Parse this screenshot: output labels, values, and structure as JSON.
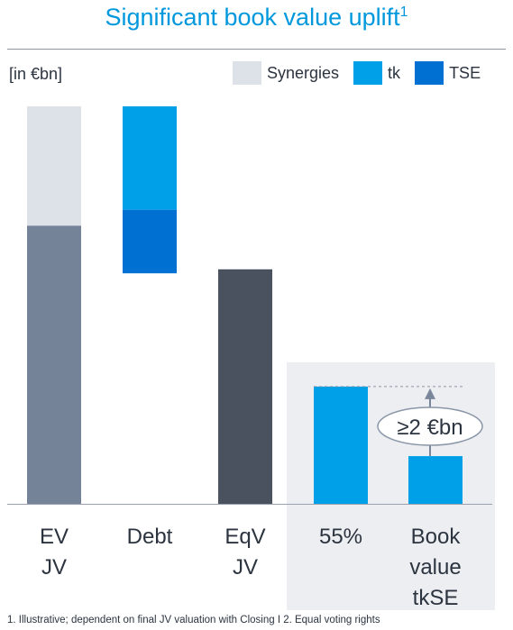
{
  "title": "Significant book value uplift",
  "title_sup": "1",
  "unit_label": "[in €bn]",
  "colors": {
    "title": "#0098dd",
    "synergies": "#dde1e8",
    "tk": "#00a0e9",
    "tse": "#0070d2",
    "ev_base": "#758398",
    "eqv": "#4a5260",
    "highlight_bg": "#eceef1"
  },
  "legend": [
    {
      "name": "Synergies",
      "color": "#dde1e8"
    },
    {
      "name": "tk",
      "color": "#00a0e9"
    },
    {
      "name": "TSE",
      "color": "#0070d2"
    }
  ],
  "chart_data": {
    "type": "bar",
    "subtype": "waterfall",
    "ylim": [
      0,
      10
    ],
    "categories": [
      {
        "name": "EV JV",
        "lines": [
          "EV",
          "JV"
        ]
      },
      {
        "name": "Debt",
        "lines": [
          "Debt"
        ]
      },
      {
        "name": "EqV JV",
        "lines": [
          "EqV",
          "JV"
        ]
      },
      {
        "name": "55%",
        "lines": [
          "55%"
        ]
      },
      {
        "name": "Book value tkSE",
        "lines": [
          "Book",
          "value",
          "tkSE"
        ]
      }
    ],
    "segments": [
      {
        "category": "EV JV",
        "series": "base",
        "bottom": 0,
        "top": 7.0,
        "color": "#758398"
      },
      {
        "category": "EV JV",
        "series": "Synergies",
        "bottom": 7.0,
        "top": 10.0,
        "color": "#dde1e8"
      },
      {
        "category": "Debt",
        "series": "TSE",
        "bottom": 5.8,
        "top": 7.4,
        "color": "#0070d2"
      },
      {
        "category": "Debt",
        "series": "tk",
        "bottom": 7.4,
        "top": 10.0,
        "color": "#00a0e9"
      },
      {
        "category": "EqV JV",
        "series": "eqv",
        "bottom": 0,
        "top": 5.9,
        "color": "#4a5260"
      },
      {
        "category": "55%",
        "series": "tk",
        "bottom": 0,
        "top": 2.95,
        "color": "#00a0e9"
      },
      {
        "category": "Book value tkSE",
        "series": "tk",
        "bottom": 0,
        "top": 1.2,
        "color": "#00a0e9"
      }
    ],
    "highlight_categories": [
      "55%",
      "Book value tkSE"
    ],
    "annotation": "≥2 €bn",
    "legend_position": "top-right",
    "grid": false
  },
  "footnote": "1. Illustrative; dependent on final JV valuation with Closing  I  2. Equal voting rights"
}
